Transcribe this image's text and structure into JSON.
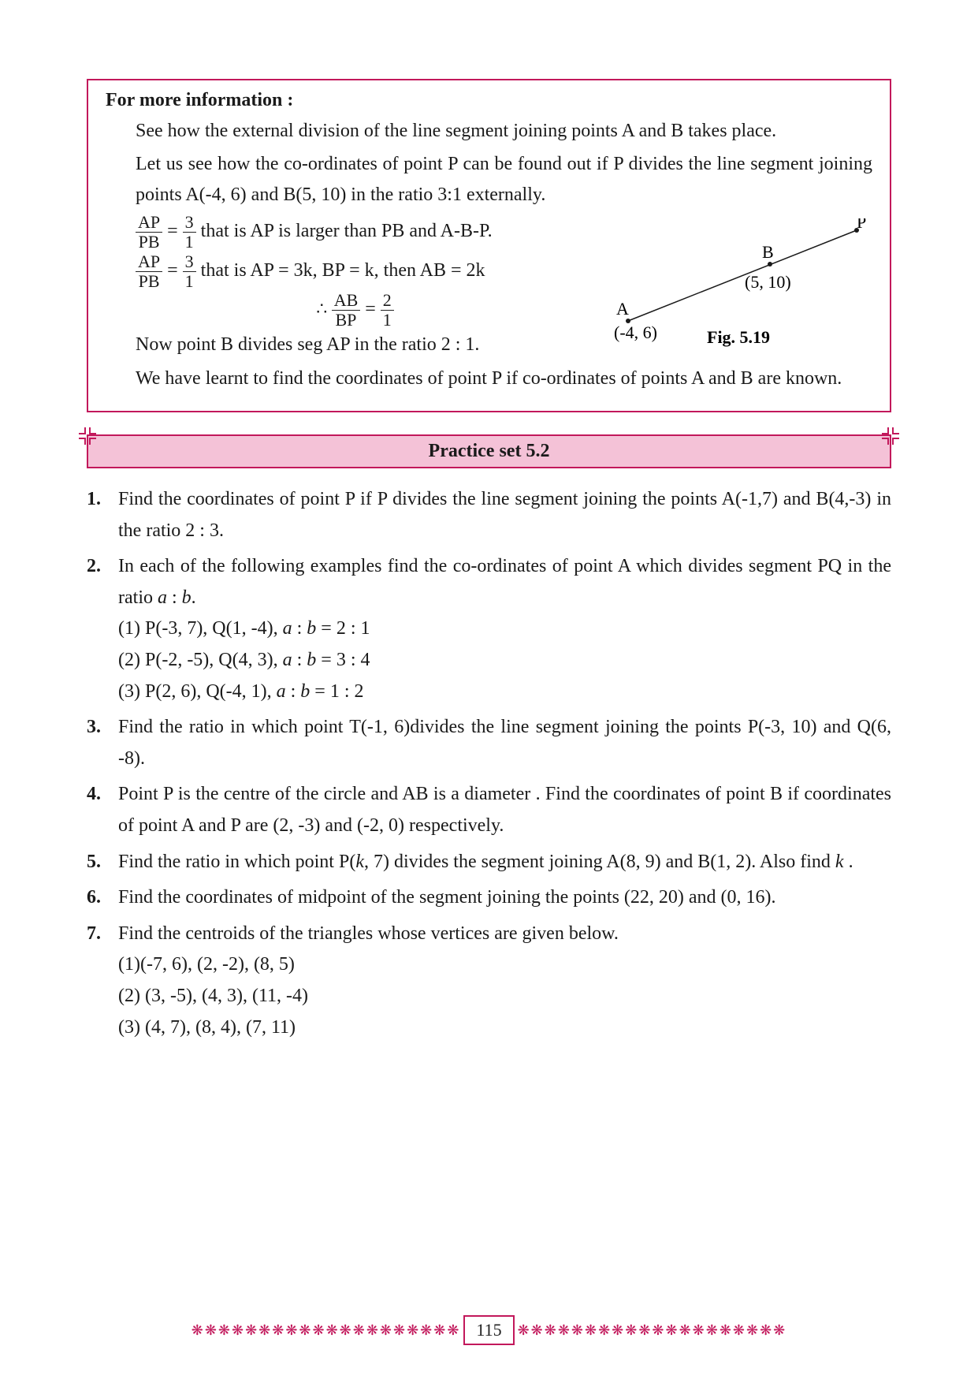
{
  "info_box": {
    "heading": "For more information  :",
    "p1": "See how the external division of the line segment joining points A and B takes place.",
    "p2": "Let us see how the co-ordinates of point P can be found out if P divides the line segment joining points A(-4, 6) and  B(5, 10) in the ratio 3:1 externally.",
    "eq1_lhs_num": "AP",
    "eq1_lhs_den": "PB",
    "eq1_rhs_num": "3",
    "eq1_rhs_den": "1",
    "eq1_text": " that is AP is larger than PB and A-B-P.",
    "eq2_text": " that is AP = 3k, BP = k, then AB = 2k",
    "eq3_pre": "∴ ",
    "eq3_lhs_num": "AB",
    "eq3_lhs_den": "BP",
    "eq3_rhs_num": "2",
    "eq3_rhs_den": "1",
    "p3": "Now point B divides seg AP in the ratio 2 : 1.",
    "p4": "We have learnt to find the coordinates of point P if co-ordinates of points A and B are known.",
    "diagram": {
      "label_A": "A",
      "coord_A": "(-4, 6)",
      "label_B": "B",
      "coord_B": "(5, 10)",
      "label_P": "P",
      "fig_caption": "Fig. 5.19",
      "line_color": "#1a1a1a",
      "point_radius": 3
    }
  },
  "practice_header": "Practice set 5.2",
  "questions": [
    {
      "num": "1.",
      "text": "Find the coordinates of point P if P divides the line segment joining the points A(-1,7) and  B(4,-3) in the ratio 2 : 3."
    },
    {
      "num": "2.",
      "text": "In each of the following examples find the co-ordinates of point A which divides segment PQ in the ratio a : b.",
      "subs": [
        "(1) P(-3, 7),  Q(1, -4), a : b = 2 : 1",
        "(2) P(-2, -5), Q(4, 3), a : b = 3 : 4",
        "(3) P(2, 6), Q(-4, 1), a : b = 1 : 2"
      ]
    },
    {
      "num": "3.",
      "text": "Find the ratio in which point T(-1, 6)divides the line segment joining the points P(-3, 10) and Q(6, -8)."
    },
    {
      "num": "4.",
      "text": "Point P is the centre of the circle and AB is a diameter . Find the coordinates of point B if coordinates of point A and P are (2, -3) and (-2, 0) respectively."
    },
    {
      "num": "5.",
      "text": "Find the ratio in which point P(k, 7) divides the segment joining A(8, 9) and B(1, 2). Also find k ."
    },
    {
      "num": "6.",
      "text": "Find the coordinates of midpoint of the segment joining the points (22, 20) and  (0, 16)."
    },
    {
      "num": "7.",
      "text": "Find the centroids of the triangles whose vertices are given below.",
      "subs": [
        "(1)(-7, 6), (2, -2), (8, 5)",
        "(2) (3, -5), (4, 3), (11, -4)",
        "(3) (4, 7), (8, 4), (7, 11)"
      ]
    }
  ],
  "page_number": "115",
  "ornament_glyph": "❋❋❋❋❋❋❋❋❋❋❋❋❋❋❋❋❋❋❋❋",
  "colors": {
    "brand": "#c2185b",
    "header_bg": "#f4c2d7",
    "text": "#1a1a1a"
  }
}
